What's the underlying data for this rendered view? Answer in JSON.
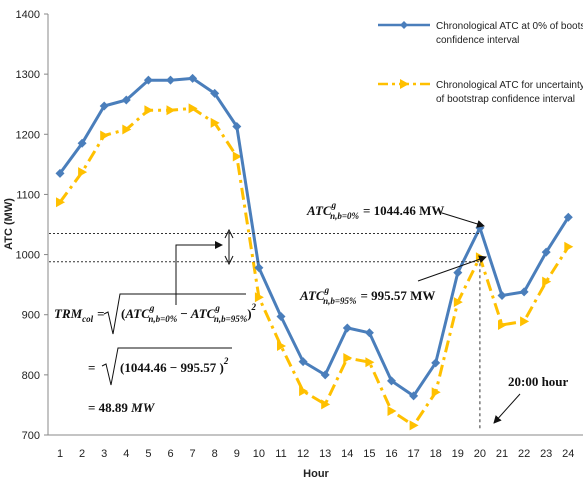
{
  "chart_data": {
    "type": "line",
    "xlabel": "Hour",
    "ylabel": "ATC (MW)",
    "x": [
      1,
      2,
      3,
      4,
      5,
      6,
      7,
      8,
      9,
      10,
      11,
      12,
      13,
      14,
      15,
      16,
      17,
      18,
      19,
      20,
      21,
      22,
      23,
      24
    ],
    "ylim": [
      700,
      1400
    ],
    "yticks": [
      700,
      800,
      900,
      1000,
      1100,
      1200,
      1300,
      1400
    ],
    "legend_position": "top-right",
    "series": [
      {
        "name": "Chronological ATC at 0% of bootstrap confidence interval",
        "color": "#4a7ebb",
        "style": "solid",
        "marker": "diamond",
        "values": [
          1135,
          1185,
          1247,
          1257,
          1290,
          1290,
          1293,
          1268,
          1213,
          978,
          897,
          822,
          800,
          878,
          870,
          790,
          765,
          820,
          970,
          1044.46,
          932,
          938,
          1004,
          1062
        ]
      },
      {
        "name": "Chronological ATC for uncertainty with 95% of bootstrap confidence interval",
        "color": "#ffc000",
        "style": "dash-dot",
        "marker": "triangle-right",
        "values": [
          1087,
          1137,
          1198,
          1208,
          1240,
          1240,
          1243,
          1219,
          1163,
          929,
          848,
          773,
          751,
          828,
          821,
          740,
          716,
          771,
          921,
          995.57,
          883,
          889,
          955,
          1013
        ]
      }
    ],
    "annotations": {
      "atc0": {
        "base": "ATC",
        "sup": "g",
        "sub": "n,b=0%",
        "value": "= 1044.46 MW"
      },
      "atc95": {
        "base": "ATC",
        "sup": "g",
        "sub": "n,b=95%",
        "value": "= 995.57 MW"
      },
      "trm_lhs": "TRM",
      "trm_lhs_sub": "col",
      "trm_eq": "=",
      "trm_formula_atc": "ATC",
      "trm_formula_sup": "g",
      "trm_formula_sub0": "n,b=0%",
      "trm_formula_sub95": "n,b=95%",
      "trm_formula_minus": "−",
      "trm_line2": "(1044.46 − 995.57 )",
      "trm_square": "2",
      "trm_result": "= 48.89 MW",
      "hour_label": "20:00 hour",
      "ref_y_high": 1035,
      "ref_y_low": 988,
      "ref_x": 20
    }
  }
}
